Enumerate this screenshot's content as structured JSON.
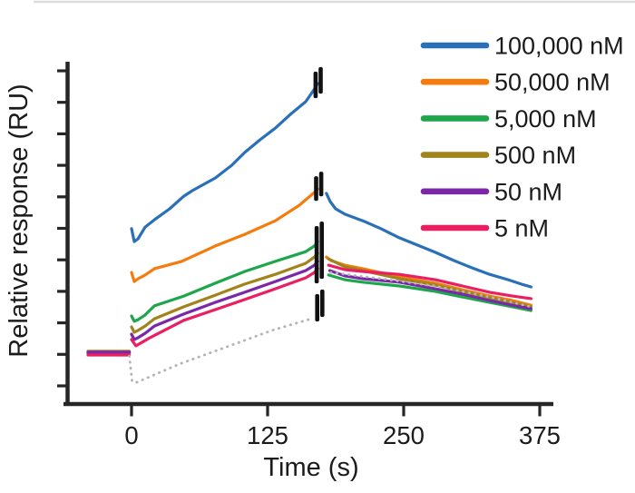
{
  "figure": {
    "xlabel": "Time (s)",
    "ylabel": "Relative response (RU)",
    "x_tick_labels": [
      "0",
      "125",
      "250",
      "375"
    ]
  },
  "legend": {
    "items": [
      {
        "label": "100,000 nM",
        "color": "#2a70b8"
      },
      {
        "label": "50,000 nM",
        "color": "#f57c0c"
      },
      {
        "label": "5,000 nM",
        "color": "#1ea64a"
      },
      {
        "label": "500 nM",
        "color": "#a0831b"
      },
      {
        "label": "50 nM",
        "color": "#7b28a8"
      },
      {
        "label": "5 nM",
        "color": "#ea1f62"
      }
    ]
  },
  "chart_data": {
    "type": "line",
    "title": "",
    "xlabel": "Time (s)",
    "ylabel": "Relative response (RU)",
    "x_ticks": [
      0,
      125,
      250,
      375
    ],
    "x_range": [
      -40,
      387
    ],
    "y_axis": {
      "tick_count": 11,
      "tick_values": [
        0,
        1,
        2,
        3,
        4,
        5,
        6,
        7,
        8,
        9,
        10
      ],
      "tick_labels_shown": false,
      "units": "RU (ticks unlabeled; values below in tick units)"
    },
    "grid": false,
    "legend_position": "top-right",
    "description": "SPR sensorgram: baseline, association phase (0-~171 s), black spike artifacts at injection stop, dissociation phase to ~367 s. Dotted gray line is the blank/reference.",
    "series": [
      {
        "name": "100,000 nM",
        "color": "#2a70b8",
        "style": "solid",
        "segments": [
          [
            [
              -40,
              1.04
            ],
            [
              -2,
              1.04
            ]
          ],
          [
            [
              0,
              4.99
            ],
            [
              2.5,
              4.58
            ],
            [
              6,
              4.67
            ],
            [
              12.5,
              5.04
            ],
            [
              21,
              5.27
            ],
            [
              35,
              5.62
            ],
            [
              48,
              6.02
            ],
            [
              56,
              6.2
            ],
            [
              77,
              6.6
            ],
            [
              92,
              7.0
            ],
            [
              104,
              7.41
            ],
            [
              118,
              7.81
            ],
            [
              132,
              8.18
            ],
            [
              146,
              8.62
            ],
            [
              160,
              9.02
            ],
            [
              168,
              9.42
            ],
            [
              171,
              9.6
            ]
          ],
          [
            [
              179,
              6.11
            ],
            [
              182.5,
              5.85
            ],
            [
              187.5,
              5.62
            ],
            [
              196,
              5.45
            ],
            [
              212.5,
              5.24
            ],
            [
              229,
              4.99
            ],
            [
              246,
              4.7
            ],
            [
              262.5,
              4.47
            ],
            [
              279,
              4.24
            ],
            [
              296,
              3.98
            ],
            [
              312.5,
              3.75
            ],
            [
              329,
              3.54
            ],
            [
              346,
              3.37
            ],
            [
              358,
              3.23
            ],
            [
              367,
              3.14
            ]
          ]
        ]
      },
      {
        "name": "50,000 nM",
        "color": "#f57c0c",
        "style": "solid",
        "segments": [
          [
            [
              -40,
              1.01
            ],
            [
              -2,
              1.01
            ]
          ],
          [
            [
              0,
              3.6
            ],
            [
              2.5,
              3.31
            ],
            [
              6,
              3.4
            ],
            [
              12.5,
              3.52
            ],
            [
              21,
              3.72
            ],
            [
              46,
              3.95
            ],
            [
              77,
              4.44
            ],
            [
              104,
              4.81
            ],
            [
              132,
              5.24
            ],
            [
              154,
              5.73
            ],
            [
              168,
              6.14
            ],
            [
              171,
              6.25
            ]
          ],
          [
            [
              179,
              4.09
            ],
            [
              183,
              3.98
            ],
            [
              196,
              3.83
            ],
            [
              212.5,
              3.72
            ],
            [
              246,
              3.46
            ],
            [
              279,
              3.26
            ],
            [
              304,
              3.05
            ],
            [
              329,
              2.85
            ],
            [
              350,
              2.71
            ],
            [
              367,
              2.56
            ]
          ]
        ]
      },
      {
        "name": "5,000 nM",
        "color": "#1ea64a",
        "style": "solid",
        "segments": [
          [
            [
              -40,
              1.06
            ],
            [
              -2,
              1.06
            ]
          ],
          [
            [
              0,
              2.22
            ],
            [
              2.5,
              2.05
            ],
            [
              6,
              2.1
            ],
            [
              12.5,
              2.25
            ],
            [
              21,
              2.54
            ],
            [
              48,
              2.85
            ],
            [
              77,
              3.26
            ],
            [
              104,
              3.63
            ],
            [
              132,
              3.95
            ],
            [
              160,
              4.26
            ],
            [
              168,
              4.44
            ],
            [
              171,
              4.58
            ]
          ],
          [
            [
              181,
              3.52
            ],
            [
              196,
              3.37
            ],
            [
              212.5,
              3.29
            ],
            [
              246,
              3.17
            ],
            [
              279,
              3.0
            ],
            [
              304,
              2.82
            ],
            [
              329,
              2.65
            ],
            [
              350,
              2.51
            ],
            [
              367,
              2.39
            ]
          ]
        ]
      },
      {
        "name": "500 nM",
        "color": "#a0831b",
        "style": "solid",
        "segments": [
          [
            [
              -40,
              1.1
            ],
            [
              -2,
              1.1
            ]
          ],
          [
            [
              0,
              1.87
            ],
            [
              2.5,
              1.7
            ],
            [
              6,
              1.76
            ],
            [
              12.5,
              1.9
            ],
            [
              21,
              2.13
            ],
            [
              48,
              2.51
            ],
            [
              77,
              2.88
            ],
            [
              104,
              3.23
            ],
            [
              132,
              3.54
            ],
            [
              160,
              3.89
            ],
            [
              168,
              4.09
            ],
            [
              171,
              4.21
            ]
          ],
          [
            [
              181,
              4.03
            ],
            [
              196,
              3.78
            ],
            [
              212.5,
              3.66
            ],
            [
              246,
              3.4
            ],
            [
              279,
              3.2
            ],
            [
              304,
              3.0
            ],
            [
              329,
              2.8
            ],
            [
              350,
              2.65
            ],
            [
              367,
              2.51
            ]
          ]
        ]
      },
      {
        "name": "50 nM",
        "color": "#7b28a8",
        "style": "solid",
        "segments": [
          [
            [
              -40,
              1.07
            ],
            [
              -2,
              1.07
            ]
          ],
          [
            [
              0,
              1.64
            ],
            [
              2.5,
              1.47
            ],
            [
              6,
              1.53
            ],
            [
              12.5,
              1.67
            ],
            [
              21,
              1.9
            ],
            [
              48,
              2.28
            ],
            [
              77,
              2.65
            ],
            [
              104,
              2.97
            ],
            [
              132,
              3.31
            ],
            [
              160,
              3.66
            ],
            [
              168,
              3.83
            ],
            [
              171,
              3.95
            ]
          ],
          [
            [
              182,
              3.66
            ],
            [
              196,
              3.49
            ],
            [
              212.5,
              3.4
            ],
            [
              246,
              3.29
            ],
            [
              279,
              3.08
            ],
            [
              304,
              2.91
            ],
            [
              329,
              2.71
            ],
            [
              350,
              2.56
            ],
            [
              367,
              2.45
            ]
          ]
        ]
      },
      {
        "name": "5 nM",
        "color": "#ea1f62",
        "style": "solid",
        "segments": [
          [
            [
              -40,
              0.98
            ],
            [
              -2,
              0.98
            ]
          ],
          [
            [
              0,
              1.47
            ],
            [
              4,
              1.27
            ],
            [
              8,
              1.35
            ],
            [
              17,
              1.53
            ],
            [
              48,
              2.08
            ],
            [
              77,
              2.42
            ],
            [
              104,
              2.74
            ],
            [
              132,
              3.08
            ],
            [
              160,
              3.43
            ],
            [
              168,
              3.6
            ],
            [
              171,
              3.72
            ]
          ],
          [
            [
              181,
              3.83
            ],
            [
              196,
              3.69
            ],
            [
              212.5,
              3.63
            ],
            [
              246,
              3.54
            ],
            [
              279,
              3.37
            ],
            [
              304,
              3.17
            ],
            [
              329,
              2.97
            ],
            [
              350,
              2.85
            ],
            [
              367,
              2.77
            ]
          ]
        ]
      },
      {
        "name": "blank reference",
        "color": "#b4b4b4",
        "style": "dotted",
        "segments": [
          [
            [
              -2,
              0.95
            ],
            [
              0.5,
              0.15
            ],
            [
              4,
              0.1
            ],
            [
              46,
              0.72
            ],
            [
              87.5,
              1.24
            ],
            [
              129,
              1.76
            ],
            [
              166,
              2.14
            ]
          ],
          [
            [
              183,
              3.6
            ],
            [
              229,
              3.4
            ],
            [
              279,
              3.17
            ],
            [
              329,
              2.82
            ],
            [
              367,
              2.51
            ]
          ]
        ]
      }
    ],
    "artifact_marks": [
      {
        "t": 170.5,
        "u_min": 9.22,
        "u_max": 10.06
      },
      {
        "t": 171.0,
        "u_min": 5.96,
        "u_max": 6.74
      },
      {
        "t": 171.5,
        "u_min": 3.34,
        "u_max": 5.16
      },
      {
        "t": 172.0,
        "u_min": 2.13,
        "u_max": 3.0
      }
    ]
  }
}
